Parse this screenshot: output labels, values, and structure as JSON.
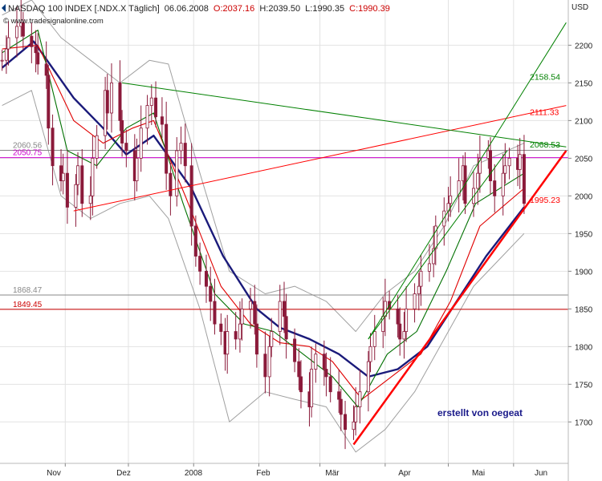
{
  "header": {
    "symbol": "NASDAQ 100 INDEX [.NDX.X  Täglich]",
    "date": "06.06.2008",
    "open": "O:2037.16",
    "high": "H:2039.50",
    "low": "L:1990.35",
    "close": "C:1990.39",
    "watermark": "© www.tradesignalonline.com"
  },
  "signature": "erstellt von oegeat",
  "colors": {
    "background": "#ffffff",
    "grid": "#e2e2e2",
    "bollinger": "#a0a0a0",
    "ma_slow": "#1a1a7a",
    "ma_mid": "#e00000",
    "ma_fast": "#007000",
    "candle": "#8b1a3a",
    "trend_red": "#ff0000",
    "trend_green": "#008000",
    "level_magenta": "#cc00cc"
  },
  "chart_data": {
    "type": "candlestick",
    "ylabel": "USD",
    "ylim": [
      1645,
      2260
    ],
    "yticks": [
      1700,
      1750,
      1800,
      1850,
      1900,
      1950,
      2000,
      2050,
      2100,
      2150,
      2200
    ],
    "xlabels": [
      "Nov",
      "Dez",
      "2008",
      "Feb",
      "Mär",
      "Apr",
      "Mai",
      "Jun"
    ],
    "series": [
      {
        "name": "Close",
        "kind": "candle",
        "start": "2007-10-02",
        "end": "2008-06-06",
        "values": [
          2180,
          2195,
          2210,
          2225,
          2230,
          2212,
          2198,
          2190,
          2175,
          2160,
          2090,
          2040,
          2020,
          2030,
          1985,
          2015,
          2040,
          1990,
          2000,
          2050,
          2080,
          2140,
          2110,
          2150,
          2100,
          2070,
          2060,
          2020,
          2050,
          2090,
          2120,
          2130,
          2105,
          2095,
          2030,
          2000,
          2060,
          2070,
          2040,
          1960,
          1920,
          1900,
          1880,
          1860,
          1830,
          1820,
          1790,
          1820,
          1810,
          1830,
          1850,
          1860,
          1830,
          1790,
          1760,
          1800,
          1820,
          1860,
          1840,
          1810,
          1780,
          1760,
          1740,
          1720,
          1770,
          1790,
          1770,
          1760,
          1740,
          1730,
          1710,
          1690,
          1700,
          1720,
          1740,
          1780,
          1800,
          1820,
          1840,
          1860,
          1850,
          1830,
          1810,
          1820,
          1850,
          1870,
          1880,
          1900,
          1910,
          1930,
          1960,
          1980,
          1990,
          2000,
          2020,
          2040,
          1990,
          2010,
          2030,
          2050,
          2060,
          2020,
          2000,
          2030,
          2040,
          2050,
          2035,
          2055,
          1990
        ]
      },
      {
        "name": "MA slow",
        "kind": "line",
        "points": [
          [
            "2007-10-02",
            2170
          ],
          [
            "2007-10-17",
            2205
          ],
          [
            "2007-11-05",
            2130
          ],
          [
            "2007-11-19",
            2090
          ],
          [
            "2007-11-30",
            2055
          ],
          [
            "2007-12-13",
            2080
          ],
          [
            "2007-12-31",
            2010
          ],
          [
            "2008-01-15",
            1920
          ],
          [
            "2008-01-31",
            1850
          ],
          [
            "2008-02-11",
            1825
          ],
          [
            "2008-02-25",
            1810
          ],
          [
            "2008-03-10",
            1790
          ],
          [
            "2008-03-24",
            1760
          ],
          [
            "2008-04-07",
            1770
          ],
          [
            "2008-04-21",
            1800
          ],
          [
            "2008-05-05",
            1860
          ],
          [
            "2008-05-19",
            1920
          ],
          [
            "2008-06-06",
            1985
          ]
        ]
      },
      {
        "name": "MA mid",
        "kind": "line",
        "points": [
          [
            "2007-10-02",
            2195
          ],
          [
            "2007-10-19",
            2200
          ],
          [
            "2007-11-05",
            2100
          ],
          [
            "2007-11-19",
            2070
          ],
          [
            "2007-12-03",
            2090
          ],
          [
            "2007-12-13",
            2100
          ],
          [
            "2007-12-28",
            2000
          ],
          [
            "2008-01-14",
            1880
          ],
          [
            "2008-01-28",
            1830
          ],
          [
            "2008-02-11",
            1805
          ],
          [
            "2008-02-25",
            1800
          ],
          [
            "2008-03-07",
            1780
          ],
          [
            "2008-03-21",
            1730
          ],
          [
            "2008-04-04",
            1760
          ],
          [
            "2008-04-18",
            1790
          ],
          [
            "2008-05-02",
            1860
          ],
          [
            "2008-05-16",
            1960
          ],
          [
            "2008-06-06",
            2010
          ]
        ]
      },
      {
        "name": "MA fast",
        "kind": "line",
        "points": [
          [
            "2007-10-02",
            2190
          ],
          [
            "2007-10-19",
            2220
          ],
          [
            "2007-11-02",
            2060
          ],
          [
            "2007-11-16",
            2040
          ],
          [
            "2007-11-30",
            2090
          ],
          [
            "2007-12-13",
            2110
          ],
          [
            "2007-12-27",
            1990
          ],
          [
            "2008-01-11",
            1870
          ],
          [
            "2008-01-25",
            1830
          ],
          [
            "2008-02-08",
            1820
          ],
          [
            "2008-02-22",
            1790
          ],
          [
            "2008-03-07",
            1760
          ],
          [
            "2008-03-19",
            1720
          ],
          [
            "2008-04-02",
            1790
          ],
          [
            "2008-04-16",
            1820
          ],
          [
            "2008-04-30",
            1900
          ],
          [
            "2008-05-14",
            1990
          ],
          [
            "2008-06-06",
            2030
          ]
        ]
      },
      {
        "name": "Bollinger upper",
        "kind": "line",
        "points": [
          [
            "2007-10-02",
            2240
          ],
          [
            "2007-10-16",
            2260
          ],
          [
            "2007-10-30",
            2210
          ],
          [
            "2007-11-13",
            2180
          ],
          [
            "2007-11-27",
            2150
          ],
          [
            "2007-12-11",
            2180
          ],
          [
            "2007-12-20",
            2175
          ],
          [
            "2008-01-04",
            2030
          ],
          [
            "2008-01-18",
            1900
          ],
          [
            "2008-02-04",
            1870
          ],
          [
            "2008-02-18",
            1880
          ],
          [
            "2008-03-04",
            1860
          ],
          [
            "2008-03-18",
            1820
          ],
          [
            "2008-04-01",
            1870
          ],
          [
            "2008-04-15",
            1900
          ],
          [
            "2008-04-29",
            1960
          ],
          [
            "2008-05-13",
            2040
          ],
          [
            "2008-06-06",
            2070
          ]
        ]
      },
      {
        "name": "Bollinger lower",
        "kind": "line",
        "points": [
          [
            "2007-10-02",
            2120
          ],
          [
            "2007-10-16",
            2140
          ],
          [
            "2007-10-30",
            2000
          ],
          [
            "2007-11-13",
            1970
          ],
          [
            "2007-11-27",
            1990
          ],
          [
            "2007-12-11",
            2000
          ],
          [
            "2007-12-20",
            1970
          ],
          [
            "2008-01-04",
            1850
          ],
          [
            "2008-01-18",
            1700
          ],
          [
            "2008-02-04",
            1740
          ],
          [
            "2008-02-18",
            1730
          ],
          [
            "2008-03-04",
            1720
          ],
          [
            "2008-03-18",
            1660
          ],
          [
            "2008-04-01",
            1690
          ],
          [
            "2008-04-15",
            1740
          ],
          [
            "2008-04-29",
            1810
          ],
          [
            "2008-05-13",
            1880
          ],
          [
            "2008-06-06",
            1950
          ]
        ]
      }
    ],
    "horizontal_levels": [
      {
        "value": 2060.56,
        "label": "2060.56",
        "color": "#888888"
      },
      {
        "value": 2050.75,
        "label": "2050.75",
        "color": "#cc00cc"
      },
      {
        "value": 1868.47,
        "label": "1868.47",
        "color": "#888888"
      },
      {
        "value": 1849.45,
        "label": "1849.45",
        "color": "#cc0000"
      }
    ],
    "trendlines": [
      {
        "from": [
          "2007-11-05",
          1980
        ],
        "to": [
          "2008-06-26",
          2120
        ],
        "color": "#ff0000",
        "width": 1,
        "label": "2111.33"
      },
      {
        "from": [
          "2008-03-17",
          1670
        ],
        "to": [
          "2008-06-26",
          2060
        ],
        "color": "#ff0000",
        "width": 2.5,
        "label": "1995.23"
      },
      {
        "from": [
          "2007-11-28",
          2150
        ],
        "to": [
          "2008-06-26",
          2065
        ],
        "color": "#008000",
        "width": 1,
        "label": "2068.53"
      },
      {
        "from": [
          "2008-03-24",
          1810
        ],
        "to": [
          "2008-06-26",
          2230
        ],
        "color": "#008000",
        "width": 1,
        "label": "2158.54"
      },
      {
        "from": [
          "2008-03-24",
          1810
        ],
        "to": [
          "2008-05-29",
          2060
        ],
        "color": "#008000",
        "width": 1,
        "label": ""
      }
    ]
  }
}
